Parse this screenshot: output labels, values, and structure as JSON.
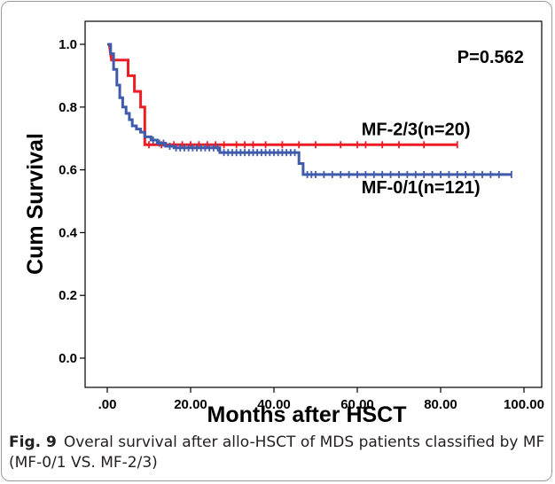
{
  "figure": {
    "label": "Fig. 9",
    "caption": "Overal survival after allo-HSCT of MDS patients classified by MF (MF-0/1 VS. MF-2/3)"
  },
  "chart_data": {
    "type": "line",
    "title": "",
    "xlabel": "Months after HSCT",
    "ylabel": "Cum Survival",
    "xlim": [
      0,
      100
    ],
    "ylim": [
      0,
      1.0
    ],
    "x_ticks": [
      0,
      20,
      40,
      60,
      80,
      100
    ],
    "x_tick_labels": [
      ".00",
      "20.00",
      "40.00",
      "60.00",
      "80.00",
      "100.00"
    ],
    "y_ticks": [
      0,
      0.2,
      0.4,
      0.6,
      0.8,
      1.0
    ],
    "y_tick_labels": [
      "0.0",
      "0.2",
      "0.4",
      "0.6",
      "0.8",
      "1.0"
    ],
    "grid": false,
    "annotations": [
      {
        "text": "P=0.562",
        "x": 84,
        "y": 0.96
      },
      {
        "text": "MF-2/3(n=20)",
        "x": 61,
        "y": 0.73
      },
      {
        "text": "MF-0/1(n=121)",
        "x": 61,
        "y": 0.545
      }
    ],
    "series": [
      {
        "label": "MF-2/3(n=20)",
        "color": "#ee1c25",
        "step_x": [
          0,
          0.5,
          1,
          5,
          5,
          6.5,
          6.5,
          8,
          8,
          9,
          9,
          84
        ],
        "step_y": [
          1.0,
          1.0,
          0.95,
          0.95,
          0.9,
          0.9,
          0.85,
          0.85,
          0.8,
          0.8,
          0.68,
          0.68
        ],
        "censored_x": [
          10,
          13,
          16,
          18,
          20,
          22,
          24,
          26,
          28,
          31,
          33,
          35,
          38,
          42,
          46,
          50,
          56,
          60,
          62,
          66,
          70,
          76,
          84
        ]
      },
      {
        "label": "MF-0/1(n=121)",
        "color": "#3f5ba9",
        "step_x": [
          0,
          0.8,
          0.8,
          1.5,
          1.5,
          2.3,
          2.3,
          3,
          3,
          3.7,
          3.7,
          4.5,
          4.5,
          5.3,
          5.3,
          6,
          6,
          7,
          7,
          8,
          8,
          9,
          9,
          10.5,
          10.5,
          12,
          12,
          14,
          14,
          16,
          16,
          27,
          27,
          46,
          46,
          47,
          47,
          97
        ],
        "step_y": [
          1.0,
          1.0,
          0.97,
          0.97,
          0.92,
          0.92,
          0.87,
          0.87,
          0.83,
          0.83,
          0.8,
          0.8,
          0.78,
          0.78,
          0.76,
          0.76,
          0.74,
          0.74,
          0.73,
          0.73,
          0.72,
          0.72,
          0.705,
          0.705,
          0.695,
          0.695,
          0.685,
          0.685,
          0.675,
          0.675,
          0.67,
          0.67,
          0.655,
          0.655,
          0.62,
          0.62,
          0.585,
          0.585
        ],
        "censored_x": [
          11,
          12.5,
          13.5,
          15,
          16.5,
          17.5,
          18.5,
          19.5,
          20.5,
          21.5,
          22.5,
          23.5,
          24.5,
          25.5,
          26.5,
          28,
          29,
          30,
          31,
          32,
          33,
          34,
          35,
          36,
          37,
          38,
          39,
          40,
          41,
          42,
          43,
          44,
          45,
          48,
          49,
          50,
          52,
          54,
          56,
          58,
          60,
          62,
          64,
          66,
          68,
          70,
          72,
          74,
          76,
          78,
          80,
          82,
          84,
          86,
          88,
          90,
          92,
          94,
          97
        ]
      }
    ]
  }
}
